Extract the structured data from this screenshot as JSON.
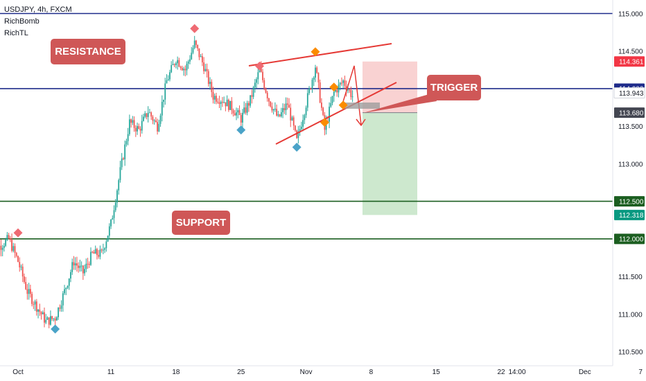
{
  "symbol": "USDJPY, 4h, FXCM",
  "indicators": [
    "RichBomb",
    "RichTL"
  ],
  "annotations": {
    "resistance": "RESISTANCE",
    "support": "SUPPORT",
    "trigger": "TRIGGER"
  },
  "colors": {
    "bull": "#26a69a",
    "bear": "#ef5350",
    "level_blue": "#1e2b8a",
    "level_green": "#1b5e20",
    "pattern_red": "#e53935",
    "profit_zone": "#c8e6c9",
    "loss_zone": "#f8caca",
    "marker_red": "#ef6b73",
    "marker_blue": "#4aa3c8",
    "marker_orange": "#fb8c00",
    "label_box": "#cf5757"
  },
  "chart_data": {
    "type": "candlestick",
    "title": "USDJPY, 4h, FXCM",
    "y_axis": {
      "ticks": [
        "115.000",
        "114.500",
        "114.000",
        "113.500",
        "113.000",
        "112.500",
        "112.000",
        "111.500",
        "111.000",
        "110.500"
      ],
      "range": [
        110.5,
        115.0
      ]
    },
    "x_axis": {
      "ticks": [
        "Oct",
        "11",
        "18",
        "25",
        "Nov",
        "8",
        "15",
        "22",
        "14:00",
        "Dec",
        "7"
      ]
    },
    "horizontal_levels": [
      {
        "price": 115.0,
        "label": "115.000",
        "color": "#1e2b8a"
      },
      {
        "price": 114.0,
        "label": "114.000",
        "color": "#1e2b8a"
      },
      {
        "price": 112.5,
        "label": "112.500",
        "color": "#1b5e20"
      },
      {
        "price": 112.0,
        "label": "112.000",
        "color": "#1b5e20"
      }
    ],
    "price_tags": [
      {
        "value": "114.361",
        "bg": "#f23645"
      },
      {
        "value": "114.000",
        "bg": "#1e2b8a"
      },
      {
        "value": "113.943",
        "bg": "#ffffff"
      },
      {
        "value": "113.680",
        "bg": "#434651"
      },
      {
        "value": "112.500",
        "bg": "#1b5e20"
      },
      {
        "value": "112.318",
        "bg": "#089981"
      },
      {
        "value": "112.000",
        "bg": "#1b5e20"
      }
    ],
    "short_position": {
      "entry": 113.68,
      "stop": 114.361,
      "target": 112.318
    },
    "price_path": [
      [
        "Sep 28",
        111.45
      ],
      [
        "Sep 29",
        111.9
      ],
      [
        "Sep 30",
        112.0
      ],
      [
        "Oct 1",
        111.7
      ],
      [
        "Oct 2",
        111.3
      ],
      [
        "Oct 3",
        111.1
      ],
      [
        "Oct 4",
        110.9
      ],
      [
        "Oct 5",
        110.95
      ],
      [
        "Oct 6",
        111.3
      ],
      [
        "Oct 7",
        111.7
      ],
      [
        "Oct 8",
        111.55
      ],
      [
        "Oct 9",
        111.8
      ],
      [
        "Oct 10",
        111.8
      ],
      [
        "Oct 11",
        112.2
      ],
      [
        "Oct 12",
        112.9
      ],
      [
        "Oct 13",
        113.55
      ],
      [
        "Oct 14",
        113.45
      ],
      [
        "Oct 15",
        113.7
      ],
      [
        "Oct 16",
        113.5
      ],
      [
        "Oct 17",
        114.1
      ],
      [
        "Oct 18",
        114.4
      ],
      [
        "Oct 19",
        114.25
      ],
      [
        "Oct 20",
        114.6
      ],
      [
        "Oct 21",
        114.3
      ],
      [
        "Oct 22",
        113.9
      ],
      [
        "Oct 23",
        113.85
      ],
      [
        "Oct 24",
        113.75
      ],
      [
        "Oct 25",
        113.6
      ],
      [
        "Oct 26",
        113.85
      ],
      [
        "Oct 27",
        114.25
      ],
      [
        "Oct 28",
        113.85
      ],
      [
        "Oct 29",
        113.6
      ],
      [
        "Oct 30",
        113.8
      ],
      [
        "Oct 31",
        113.3
      ],
      [
        "Nov 1",
        113.8
      ],
      [
        "Nov 2",
        114.3
      ],
      [
        "Nov 3",
        113.45
      ],
      [
        "Nov 4",
        113.95
      ],
      [
        "Nov 5",
        114.1
      ],
      [
        "Nov 6",
        113.9
      ]
    ],
    "markers": [
      {
        "date": "Oct 1",
        "price": 112.08,
        "color": "red"
      },
      {
        "date": "Oct 5",
        "price": 110.8,
        "color": "blue"
      },
      {
        "date": "Oct 20",
        "price": 114.8,
        "color": "red"
      },
      {
        "date": "Oct 25",
        "price": 113.45,
        "color": "blue"
      },
      {
        "date": "Oct 27",
        "price": 114.3,
        "color": "red"
      },
      {
        "date": "Oct 31",
        "price": 113.22,
        "color": "blue"
      },
      {
        "date": "Nov 2",
        "price": 114.49,
        "color": "orange"
      },
      {
        "date": "Nov 3",
        "price": 113.55,
        "color": "orange"
      },
      {
        "date": "Nov 4",
        "price": 114.02,
        "color": "orange"
      },
      {
        "date": "Nov 5",
        "price": 113.78,
        "color": "orange"
      }
    ]
  }
}
